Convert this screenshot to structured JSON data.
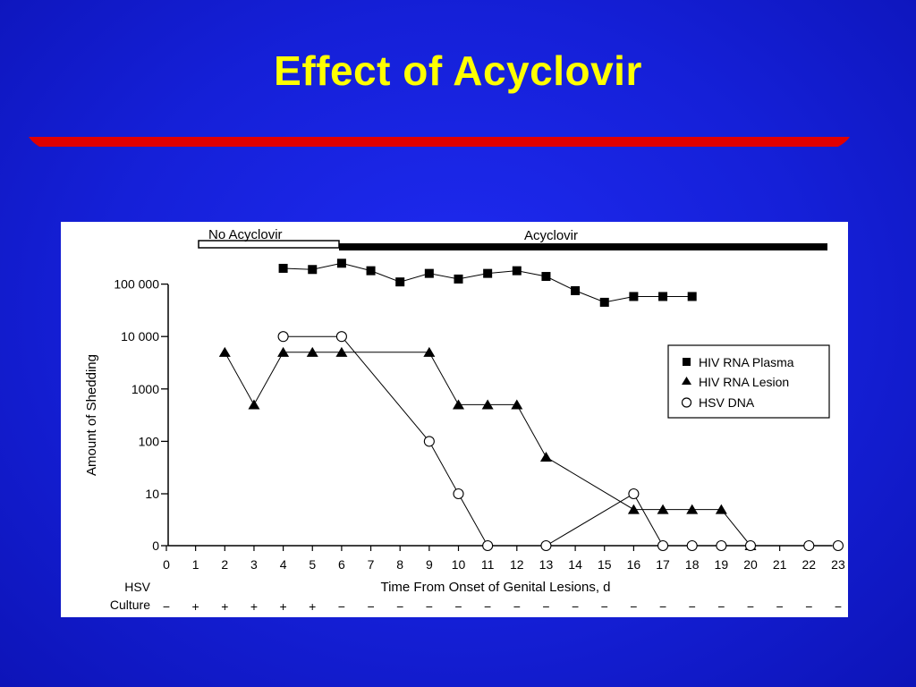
{
  "slide": {
    "title": "Effect of Acyclovir",
    "accent_color": "#e00000",
    "title_color": "#ffff00"
  },
  "chart_data": {
    "type": "line",
    "title": "",
    "xlabel": "Time From Onset of Genital Lesions, d",
    "ylabel": "Amount of Shedding",
    "x_ticks": [
      "0",
      "1",
      "2",
      "3",
      "4",
      "5",
      "6",
      "7",
      "8",
      "9",
      "10",
      "11",
      "12",
      "13",
      "14",
      "15",
      "16",
      "17",
      "18",
      "19",
      "20",
      "21",
      "22",
      "23"
    ],
    "y_ticks": [
      "0",
      "10",
      "100",
      "1000",
      "10 000",
      "100 000"
    ],
    "y_scale": "log (0 shown at baseline)",
    "xlim": [
      0,
      23
    ],
    "grid": false,
    "legend": "right",
    "treatment_bar": {
      "no_acyclovir_label": "No Acyclovir",
      "acyclovir_label": "Acyclovir",
      "no_acyclovir_range": [
        0,
        6
      ],
      "acyclovir_range": [
        6,
        23
      ]
    },
    "series": [
      {
        "name": "HIV RNA Plasma",
        "marker": "filled-square",
        "x": [
          4,
          5,
          6,
          7,
          8,
          9,
          10,
          11,
          12,
          13,
          14,
          15,
          16,
          17,
          18
        ],
        "y": [
          200000,
          190000,
          250000,
          180000,
          110000,
          160000,
          125000,
          160000,
          180000,
          140000,
          75000,
          45000,
          58000,
          58000,
          58000
        ]
      },
      {
        "name": "HIV RNA Lesion",
        "marker": "filled-triangle",
        "x": [
          2,
          3,
          4,
          5,
          6,
          9,
          10,
          11,
          12,
          13,
          16,
          17,
          18,
          19,
          20
        ],
        "y": [
          5000,
          500,
          5000,
          5000,
          5000,
          5000,
          500,
          500,
          500,
          50,
          5,
          5,
          5,
          5,
          0
        ]
      },
      {
        "name": "HSV DNA",
        "marker": "open-circle",
        "x": [
          4,
          6,
          9,
          10,
          11,
          13,
          16,
          17,
          18,
          19,
          20,
          22,
          23
        ],
        "y": [
          10000,
          10000,
          100,
          10,
          0,
          0,
          10,
          0,
          0,
          0,
          0,
          0,
          0
        ]
      }
    ],
    "hsv_culture": {
      "label_line1": "HSV",
      "label_line2": "Culture",
      "values": [
        "−",
        "+",
        "+",
        "+",
        "+",
        "+",
        "−",
        "−",
        "−",
        "−",
        "−",
        "−",
        "−",
        "−",
        "−",
        "−",
        "−",
        "−",
        "−",
        "−",
        "−",
        "−",
        "−",
        "−"
      ]
    }
  }
}
